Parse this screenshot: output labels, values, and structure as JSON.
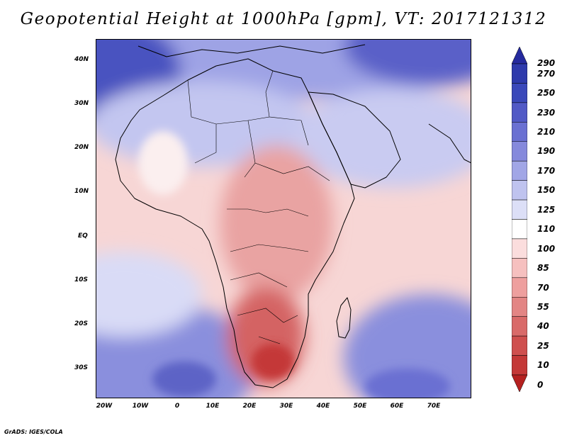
{
  "title": "Geopotential Height at 1000hPa [gpm], VT: 2017121312",
  "lat_labels": [
    "40N",
    "30N",
    "20N",
    "10N",
    "EQ",
    "10S",
    "20S",
    "30S"
  ],
  "lon_labels": [
    "20W",
    "10W",
    "0",
    "10E",
    "20E",
    "30E",
    "40E",
    "50E",
    "60E",
    "70E"
  ],
  "colorbar": {
    "labels": [
      "290",
      "270",
      "250",
      "230",
      "210",
      "190",
      "170",
      "150",
      "125",
      "110",
      "100",
      "85",
      "70",
      "55",
      "40",
      "25",
      "10",
      "0"
    ],
    "colors": [
      "#252a9e",
      "#2e3aac",
      "#3a48ba",
      "#5159c6",
      "#6a70d2",
      "#8589dc",
      "#a1a6e6",
      "#bfc3ef",
      "#dcdff7",
      "#ffffff",
      "#fbdddd",
      "#f6c0bf",
      "#ee9f9e",
      "#e38584",
      "#d96a69",
      "#cf4f4e",
      "#c43837",
      "#b52120"
    ]
  },
  "credit": "GrADS: IGES/COLA"
}
